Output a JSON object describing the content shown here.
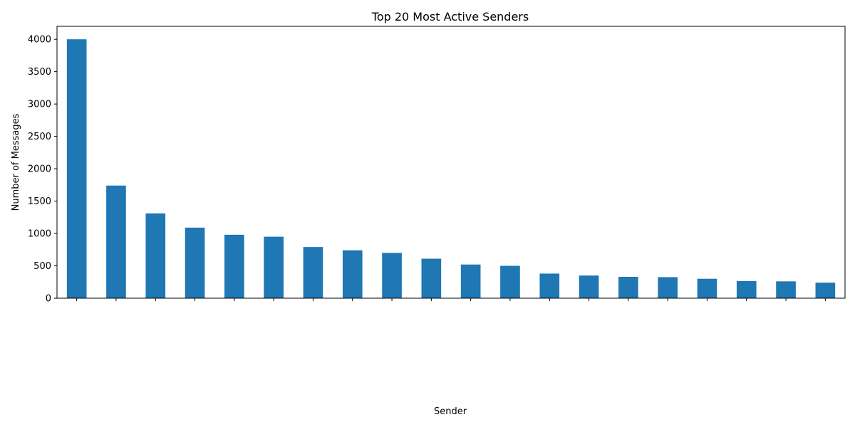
{
  "chart_data": {
    "type": "bar",
    "title": "Top 20 Most Active Senders",
    "xlabel": "Sender",
    "ylabel": "Number of Messages",
    "categories": [
      "",
      "",
      "",
      "",
      "",
      "",
      "",
      "",
      "",
      "",
      "",
      "",
      "",
      "",
      "",
      "",
      "",
      "",
      "",
      ""
    ],
    "values": [
      4000,
      1740,
      1310,
      1090,
      980,
      950,
      790,
      740,
      700,
      610,
      520,
      500,
      380,
      350,
      330,
      325,
      300,
      265,
      260,
      240
    ],
    "ylim": [
      0,
      4200
    ],
    "yticks": [
      0,
      500,
      1000,
      1500,
      2000,
      2500,
      3000,
      3500,
      4000
    ],
    "grid": false,
    "colors": {
      "bar": "#1f77b4"
    }
  }
}
